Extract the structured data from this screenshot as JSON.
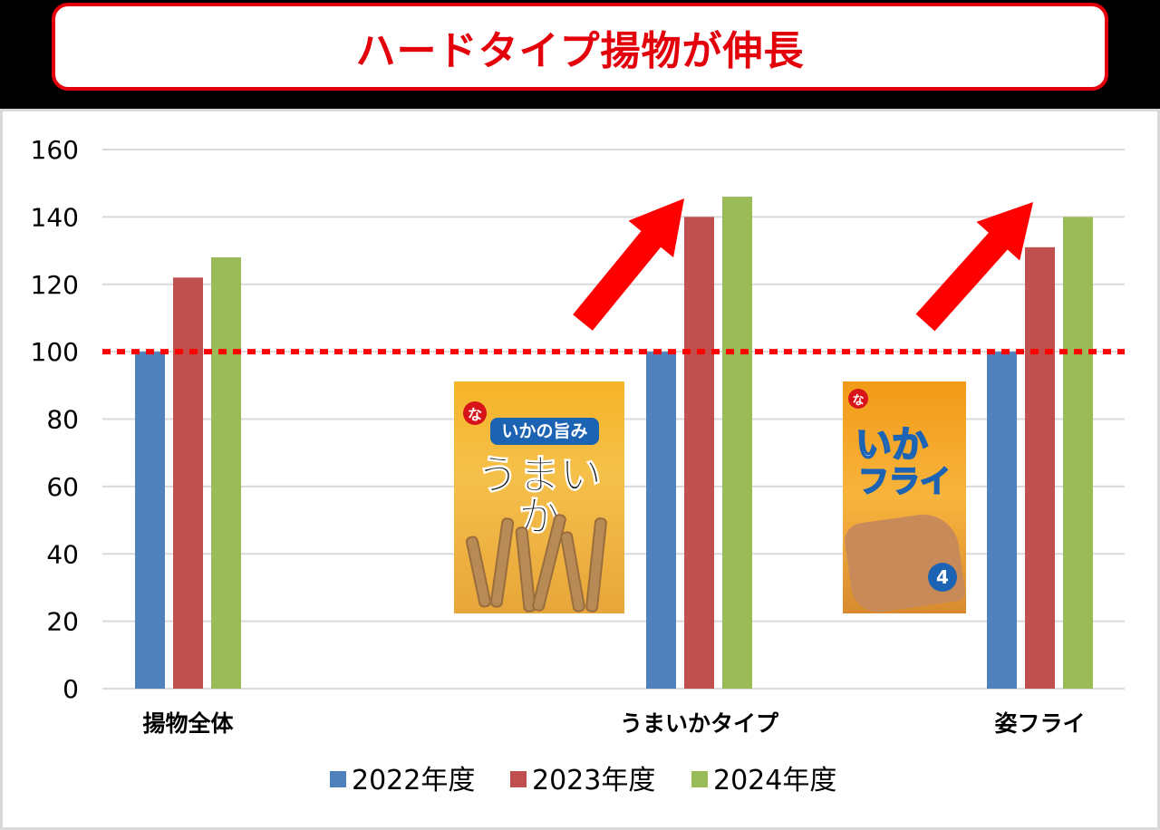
{
  "title": "ハードタイプ揚物が伸長",
  "chart_data": {
    "type": "bar",
    "categories": [
      "揚物全体",
      "うまいかタイプ",
      "姿フライ"
    ],
    "series": [
      {
        "name": "2022年度",
        "values": [
          100,
          100,
          100
        ],
        "color": "#4f81bd"
      },
      {
        "name": "2023年度",
        "values": [
          122,
          140,
          131
        ],
        "color": "#c0504d"
      },
      {
        "name": "2024年度",
        "values": [
          128,
          146,
          140
        ],
        "color": "#9bbb59"
      }
    ],
    "ylim": [
      0,
      160
    ],
    "yticks": [
      0,
      20,
      40,
      60,
      80,
      100,
      120,
      140,
      160
    ],
    "grid": true,
    "legend_position": "bottom",
    "reference_line": {
      "value": 100,
      "style": "dotted",
      "color": "#ff0000"
    },
    "annotations": [
      {
        "type": "arrow",
        "category": "うまいかタイプ",
        "color": "#ff0000"
      },
      {
        "type": "arrow",
        "category": "姿フライ",
        "color": "#ff0000"
      }
    ]
  },
  "packages": {
    "umaika": {
      "logo": "な",
      "sub": "いかの旨み",
      "main": "うまいか"
    },
    "ikafry": {
      "logo": "な",
      "main_line1": "いか",
      "main_line2": "フライ",
      "count": "4"
    }
  }
}
